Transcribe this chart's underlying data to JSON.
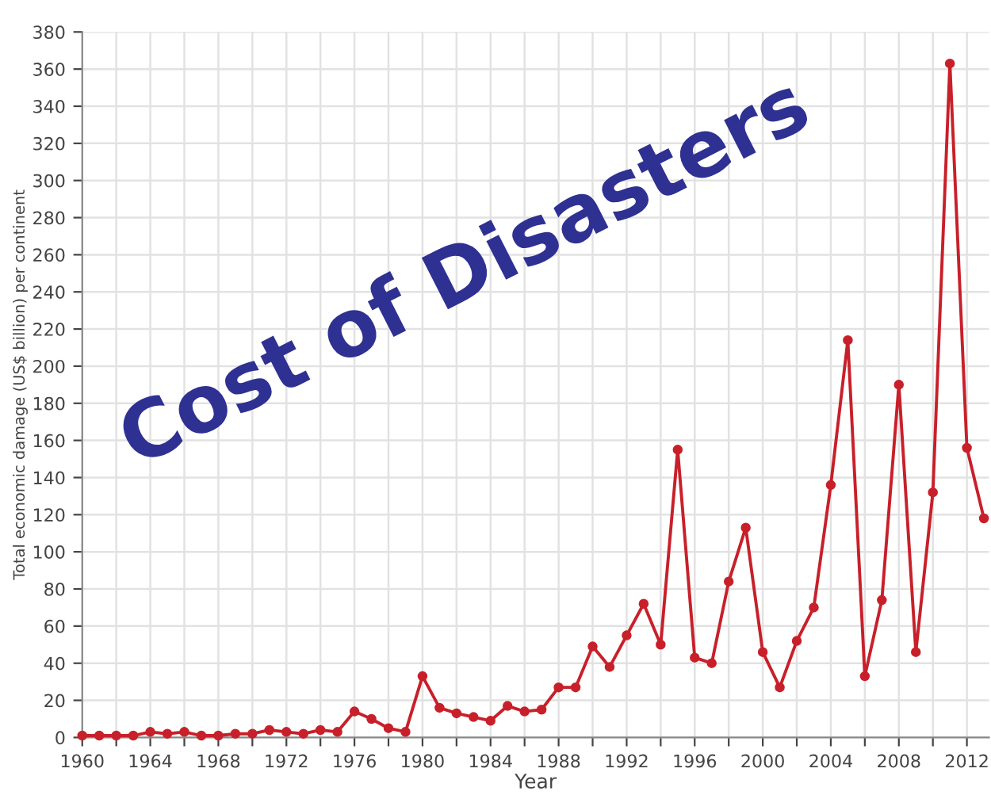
{
  "chart_data": {
    "type": "line",
    "title": "Cost of Disasters",
    "xlabel": "Year",
    "ylabel": "Total economic damage (US$ billion) per continent",
    "x": [
      1960,
      1961,
      1962,
      1963,
      1964,
      1965,
      1966,
      1967,
      1968,
      1969,
      1970,
      1971,
      1972,
      1973,
      1974,
      1975,
      1976,
      1977,
      1978,
      1979,
      1980,
      1981,
      1982,
      1983,
      1984,
      1985,
      1986,
      1987,
      1988,
      1989,
      1990,
      1991,
      1992,
      1993,
      1994,
      1995,
      1996,
      1997,
      1998,
      1999,
      2000,
      2001,
      2002,
      2003,
      2004,
      2005,
      2006,
      2007,
      2008,
      2009,
      2010,
      2011,
      2012,
      2013
    ],
    "series": [
      {
        "color": "#c8202a",
        "values": [
          1,
          1,
          1,
          1,
          3,
          2,
          3,
          1,
          1,
          2,
          2,
          4,
          3,
          2,
          4,
          3,
          14,
          10,
          5,
          3,
          33,
          16,
          13,
          11,
          9,
          17,
          14,
          15,
          27,
          27,
          49,
          38,
          55,
          72,
          50,
          155,
          43,
          40,
          84,
          113,
          46,
          27,
          52,
          70,
          136,
          214,
          33,
          74,
          190,
          46,
          132,
          363,
          156,
          118
        ]
      }
    ],
    "xlim": [
      1960,
      2013.3
    ],
    "ylim": [
      0,
      380
    ],
    "xticks": [
      1960,
      {
        "value": 1962,
        "label": null
      },
      1964,
      {
        "value": 1966,
        "label": null
      },
      1968,
      {
        "value": 1970,
        "label": null
      },
      1972,
      {
        "value": 1974,
        "label": null
      },
      1976,
      {
        "value": 1978,
        "label": null
      },
      1980,
      {
        "value": 1982,
        "label": null
      },
      1984,
      {
        "value": 1986,
        "label": null
      },
      1988,
      {
        "value": 1990,
        "label": null
      },
      1992,
      {
        "value": 1994,
        "label": null
      },
      1996,
      {
        "value": 1998,
        "label": null
      },
      2000,
      {
        "value": 2002,
        "label": null
      },
      2004,
      {
        "value": 2006,
        "label": null
      },
      2008,
      {
        "value": 2010,
        "label": null
      },
      2012
    ],
    "yticks": [
      0,
      20,
      40,
      60,
      80,
      100,
      120,
      140,
      160,
      180,
      200,
      220,
      240,
      260,
      280,
      300,
      320,
      340,
      360,
      380
    ],
    "grid": true,
    "marker": "circle",
    "line_style": "solid"
  }
}
